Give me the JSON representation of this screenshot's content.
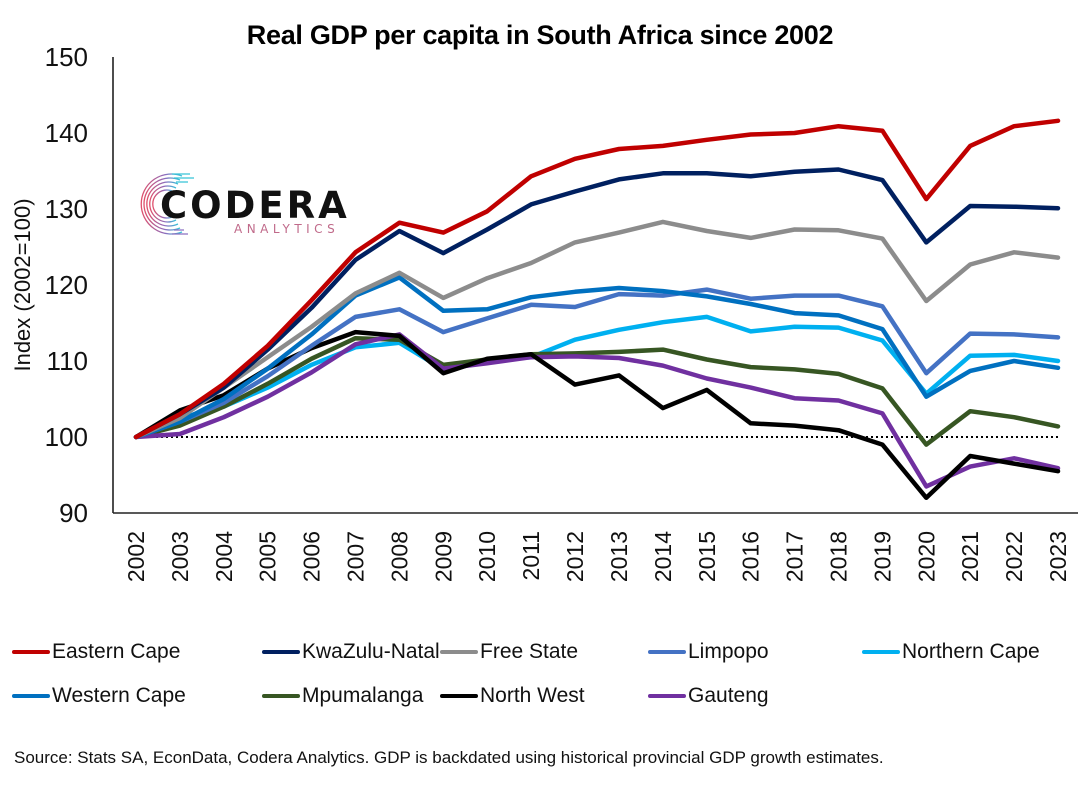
{
  "chart_data": {
    "type": "line",
    "title": "Real GDP per capita in South Africa since 2002",
    "xlabel": "",
    "ylabel": "Index (2002=100)",
    "ylim": [
      90,
      150
    ],
    "yticks": [
      90,
      100,
      110,
      120,
      130,
      140,
      150
    ],
    "grid": false,
    "reference_line": {
      "y": 100,
      "style": "dotted"
    },
    "legend_position": "bottom",
    "x": [
      "2002",
      "2003",
      "2004",
      "2005",
      "2006",
      "2007",
      "2008",
      "2009",
      "2010",
      "2011",
      "2012",
      "2013",
      "2014",
      "2015",
      "2016",
      "2017",
      "2018",
      "2019",
      "2020",
      "2021",
      "2022",
      "2023"
    ],
    "series": [
      {
        "name": "Eastern Cape",
        "color": "#c00000",
        "values": [
          100,
          103,
          107,
          112,
          118,
          124.3,
          128.2,
          126.9,
          129.7,
          134.3,
          136.6,
          137.9,
          138.3,
          139.1,
          139.8,
          140.0,
          140.9,
          140.3,
          131.3,
          138.3,
          140.9,
          141.6
        ]
      },
      {
        "name": "KwaZulu-Natal",
        "color": "#002060",
        "values": [
          100,
          103,
          106.5,
          111.5,
          117,
          123.3,
          127.1,
          124.2,
          127.3,
          130.6,
          132.3,
          133.9,
          134.7,
          134.7,
          134.3,
          134.9,
          135.2,
          133.8,
          125.6,
          130.4,
          130.3,
          130.1
        ]
      },
      {
        "name": "Free State",
        "color": "#8c8c8c",
        "values": [
          100,
          102.5,
          106.5,
          110.5,
          114.5,
          118.9,
          121.6,
          118.3,
          120.9,
          122.9,
          125.6,
          126.9,
          128.3,
          127.1,
          126.2,
          127.3,
          127.2,
          126.1,
          117.9,
          122.7,
          124.3,
          123.6
        ]
      },
      {
        "name": "Limpopo",
        "color": "#4472c4",
        "values": [
          100,
          102,
          104.5,
          108,
          112,
          115.8,
          116.8,
          113.8,
          115.6,
          117.4,
          117.1,
          118.8,
          118.6,
          119.4,
          118.2,
          118.6,
          118.6,
          117.2,
          108.4,
          113.6,
          113.5,
          113.1
        ]
      },
      {
        "name": "Northern Cape",
        "color": "#00b0f0",
        "values": [
          100,
          102.5,
          104,
          106.5,
          109.5,
          111.8,
          112.4,
          108.9,
          110.1,
          110.5,
          112.8,
          114.1,
          115.1,
          115.8,
          113.9,
          114.5,
          114.4,
          112.7,
          105.7,
          110.7,
          110.8,
          110.0
        ]
      },
      {
        "name": "Western Cape",
        "color": "#0070c0",
        "values": [
          100,
          102,
          105,
          109,
          113.5,
          118.6,
          121.0,
          116.6,
          116.8,
          118.4,
          119.1,
          119.6,
          119.2,
          118.5,
          117.5,
          116.3,
          116.0,
          114.2,
          105.3,
          108.7,
          110.0,
          109.1
        ]
      },
      {
        "name": "Mpumalanga",
        "color": "#375623",
        "values": [
          100,
          101.5,
          104,
          107,
          110.3,
          113.0,
          112.8,
          109.5,
          110.2,
          110.9,
          111.0,
          111.2,
          111.5,
          110.2,
          109.2,
          108.9,
          108.3,
          106.4,
          99.0,
          103.4,
          102.6,
          101.4
        ]
      },
      {
        "name": "North West",
        "color": "#000000",
        "values": [
          100,
          103.5,
          105.5,
          109,
          111.7,
          113.8,
          113.3,
          108.4,
          110.3,
          110.9,
          106.9,
          108.1,
          103.8,
          106.2,
          101.8,
          101.5,
          100.9,
          99.0,
          92.0,
          97.5,
          96.5,
          95.5
        ]
      },
      {
        "name": "Gauteng",
        "color": "#7030a0",
        "values": [
          100,
          100.4,
          102.6,
          105.3,
          108.5,
          112.2,
          113.5,
          109.0,
          109.7,
          110.5,
          110.6,
          110.4,
          109.4,
          107.7,
          106.5,
          105.1,
          104.8,
          103.1,
          93.5,
          96.1,
          97.2,
          95.9
        ]
      }
    ],
    "draw_order": [
      "Northern Cape",
      "Mpumalanga",
      "Gauteng",
      "North West",
      "Limpopo",
      "Western Cape",
      "Free State",
      "KwaZulu-Natal",
      "Eastern Cape"
    ],
    "source_note": "Source: Stats SA, EconData, Codera Analytics. GDP is backdated using historical provincial GDP growth estimates."
  },
  "logo": {
    "word": "CODERA",
    "sub": "ANALYTICS"
  },
  "legend_rows": [
    [
      "Eastern Cape",
      "KwaZulu-Natal",
      "Free State",
      "Limpopo",
      "Northern Cape"
    ],
    [
      "Western Cape",
      "Mpumalanga",
      "North West",
      "Gauteng"
    ]
  ]
}
